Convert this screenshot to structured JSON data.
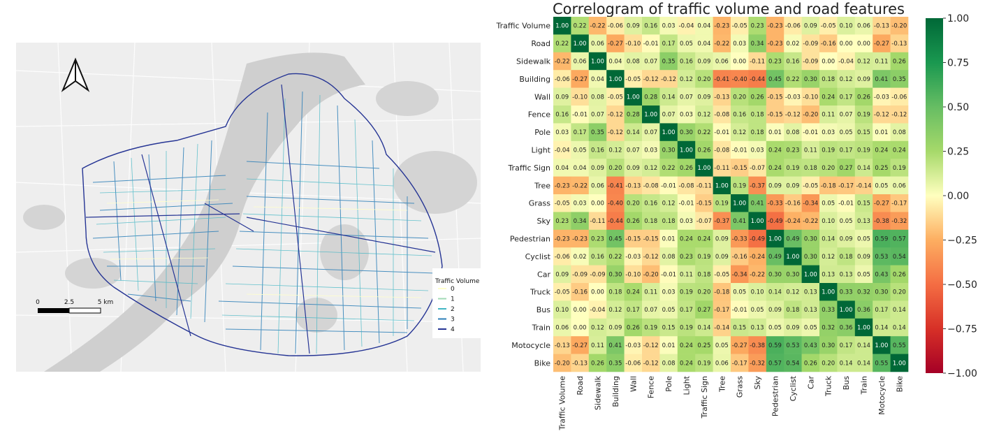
{
  "map": {
    "legend": {
      "title": "Traffic Volume",
      "levels": [
        "0",
        "1",
        "2",
        "3",
        "4"
      ],
      "colors": [
        "#ffffcc",
        "#a1dab4",
        "#41b6c4",
        "#2c7fb8",
        "#253494"
      ]
    },
    "scale_bar": {
      "labels": [
        "0",
        "2.5",
        "5 km"
      ]
    },
    "colors": {
      "background": "#eeeeee",
      "river": "#cfcfcf",
      "road_lines": "#ffffff"
    }
  },
  "chart_data": {
    "type": "heatmap",
    "title": "Correlogram of traffic volume and road features",
    "labels": [
      "Traffic Volume",
      "Road",
      "Sidewalk",
      "Building",
      "Wall",
      "Fence",
      "Pole",
      "Light",
      "Traffic Sign",
      "Tree",
      "Grass",
      "Sky",
      "Pedestrian",
      "Cyclist",
      "Car",
      "Truck",
      "Bus",
      "Train",
      "Motocycle",
      "Bike"
    ],
    "matrix": [
      [
        1.0,
        0.22,
        -0.22,
        -0.06,
        0.09,
        0.16,
        0.03,
        -0.04,
        0.04,
        -0.23,
        -0.05,
        0.23,
        -0.23,
        -0.06,
        0.09,
        -0.05,
        0.1,
        0.06,
        -0.13,
        -0.2
      ],
      [
        0.22,
        1.0,
        0.06,
        -0.27,
        -0.1,
        -0.01,
        0.17,
        0.05,
        0.04,
        -0.22,
        0.03,
        0.34,
        -0.23,
        0.02,
        -0.09,
        -0.16,
        0.0,
        0.0,
        -0.27,
        -0.13
      ],
      [
        -0.22,
        0.06,
        1.0,
        0.04,
        0.08,
        0.07,
        0.35,
        0.16,
        0.09,
        0.06,
        0.0,
        -0.11,
        0.23,
        0.16,
        -0.09,
        0.0,
        -0.04,
        0.12,
        0.11,
        0.26
      ],
      [
        -0.06,
        -0.27,
        0.04,
        1.0,
        -0.05,
        -0.12,
        -0.12,
        0.12,
        0.2,
        -0.41,
        -0.4,
        -0.44,
        0.45,
        0.22,
        0.3,
        0.18,
        0.12,
        0.09,
        0.41,
        0.35
      ],
      [
        0.09,
        -0.1,
        0.08,
        -0.05,
        1.0,
        0.28,
        0.14,
        0.07,
        0.09,
        -0.13,
        0.2,
        0.26,
        -0.15,
        -0.03,
        -0.1,
        0.24,
        0.17,
        0.26,
        -0.03,
        -0.06
      ],
      [
        0.16,
        -0.01,
        0.07,
        -0.12,
        0.28,
        1.0,
        0.07,
        0.03,
        0.12,
        -0.08,
        0.16,
        0.18,
        -0.15,
        -0.12,
        -0.2,
        0.11,
        0.07,
        0.19,
        -0.12,
        -0.12
      ],
      [
        0.03,
        0.17,
        0.35,
        -0.12,
        0.14,
        0.07,
        1.0,
        0.3,
        0.22,
        -0.01,
        0.12,
        0.18,
        0.01,
        0.08,
        -0.01,
        0.03,
        0.05,
        0.15,
        0.01,
        0.08
      ],
      [
        -0.04,
        0.05,
        0.16,
        0.12,
        0.07,
        0.03,
        0.3,
        1.0,
        0.26,
        -0.08,
        -0.01,
        0.03,
        0.24,
        0.23,
        0.11,
        0.19,
        0.17,
        0.19,
        0.24,
        0.24
      ],
      [
        0.04,
        0.04,
        0.09,
        0.2,
        0.09,
        0.12,
        0.22,
        0.26,
        1.0,
        -0.11,
        -0.15,
        -0.07,
        0.24,
        0.19,
        0.18,
        0.2,
        0.27,
        0.14,
        0.25,
        0.19
      ],
      [
        -0.23,
        -0.22,
        0.06,
        -0.41,
        -0.13,
        -0.08,
        -0.01,
        -0.08,
        -0.11,
        1.0,
        0.19,
        -0.37,
        0.09,
        0.09,
        -0.05,
        -0.18,
        -0.17,
        -0.14,
        0.05,
        0.06
      ],
      [
        -0.05,
        0.03,
        0.0,
        -0.4,
        0.2,
        0.16,
        0.12,
        -0.01,
        -0.15,
        0.19,
        1.0,
        0.41,
        -0.33,
        -0.16,
        -0.34,
        0.05,
        -0.01,
        0.15,
        -0.27,
        -0.17
      ],
      [
        0.23,
        0.34,
        -0.11,
        -0.44,
        0.26,
        0.18,
        0.18,
        0.03,
        -0.07,
        -0.37,
        0.41,
        1.0,
        -0.49,
        -0.24,
        -0.22,
        0.1,
        0.05,
        0.13,
        -0.38,
        -0.32
      ],
      [
        -0.23,
        -0.23,
        0.23,
        0.45,
        -0.15,
        -0.15,
        0.01,
        0.24,
        0.24,
        0.09,
        -0.33,
        -0.49,
        1.0,
        0.49,
        0.3,
        0.14,
        0.09,
        0.05,
        0.59,
        0.57
      ],
      [
        -0.06,
        0.02,
        0.16,
        0.22,
        -0.03,
        -0.12,
        0.08,
        0.23,
        0.19,
        0.09,
        -0.16,
        -0.24,
        0.49,
        1.0,
        0.3,
        0.12,
        0.18,
        0.09,
        0.53,
        0.54
      ],
      [
        0.09,
        -0.09,
        -0.09,
        0.3,
        -0.1,
        -0.2,
        -0.01,
        0.11,
        0.18,
        -0.05,
        -0.34,
        -0.22,
        0.3,
        0.3,
        1.0,
        0.13,
        0.13,
        0.05,
        0.43,
        0.26
      ],
      [
        -0.05,
        -0.16,
        0.0,
        0.18,
        0.24,
        0.11,
        0.03,
        0.19,
        0.2,
        -0.18,
        0.05,
        0.1,
        0.14,
        0.12,
        0.13,
        1.0,
        0.33,
        0.32,
        0.3,
        0.2
      ],
      [
        0.1,
        0.0,
        -0.04,
        0.12,
        0.17,
        0.07,
        0.05,
        0.17,
        0.27,
        -0.17,
        -0.01,
        0.05,
        0.09,
        0.18,
        0.13,
        0.33,
        1.0,
        0.36,
        0.17,
        0.14
      ],
      [
        0.06,
        0.0,
        0.12,
        0.09,
        0.26,
        0.19,
        0.15,
        0.19,
        0.14,
        -0.14,
        0.15,
        0.13,
        0.05,
        0.09,
        0.05,
        0.32,
        0.36,
        1.0,
        0.14,
        0.14
      ],
      [
        -0.13,
        -0.27,
        0.11,
        0.41,
        -0.03,
        -0.12,
        0.01,
        0.24,
        0.25,
        0.05,
        -0.27,
        -0.38,
        0.59,
        0.53,
        0.43,
        0.3,
        0.17,
        0.14,
        1.0,
        0.55
      ],
      [
        -0.2,
        -0.13,
        0.26,
        0.35,
        -0.06,
        -0.12,
        0.08,
        0.24,
        0.19,
        0.06,
        -0.17,
        -0.32,
        0.57,
        0.54,
        0.26,
        0.2,
        0.14,
        0.14,
        0.55,
        1.0
      ]
    ],
    "vmin": -1.0,
    "vmax": 1.0,
    "colormap": "RdYlGn",
    "colorbar_ticks": [
      "1.00",
      "0.75",
      "0.50",
      "0.25",
      "0.00",
      "−0.25",
      "−0.50",
      "−0.75",
      "−1.00"
    ]
  }
}
